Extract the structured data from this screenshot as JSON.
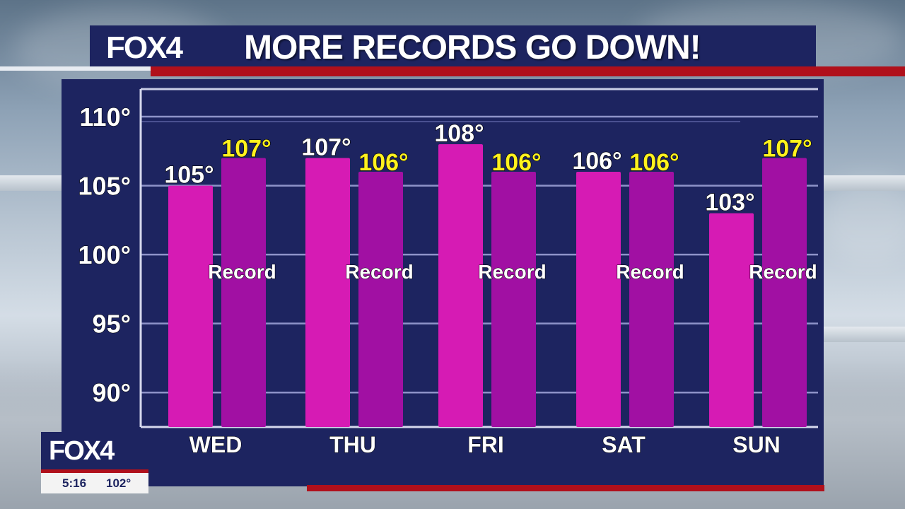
{
  "header": {
    "logo": "FOX4",
    "title": "MORE RECORDS GO DOWN!"
  },
  "bug": {
    "logo": "FOX4",
    "time": "5:16",
    "temp": "102°"
  },
  "colors": {
    "navy": "#1d2460",
    "red": "#b0101b",
    "forecast_bar": "#d61bb4",
    "record_bar": "#a110a3",
    "record_value": "#fff21e"
  },
  "chart_data": {
    "type": "bar",
    "categories": [
      "WED",
      "THU",
      "FRI",
      "SAT",
      "SUN"
    ],
    "series": [
      {
        "values": [
          105,
          107,
          108,
          106,
          103
        ],
        "labels": [
          "105°",
          "107°",
          "108°",
          "106°",
          "103°"
        ]
      },
      {
        "name": "Record",
        "values": [
          107,
          106,
          106,
          106,
          107
        ],
        "labels": [
          "107°",
          "106°",
          "106°",
          "106°",
          "107°"
        ]
      }
    ],
    "y_ticks": [
      {
        "value": 90,
        "label": "90°"
      },
      {
        "value": 95,
        "label": "95°"
      },
      {
        "value": 100,
        "label": "100°"
      },
      {
        "value": 105,
        "label": "105°"
      },
      {
        "value": 110,
        "label": "110°"
      }
    ],
    "ylim": [
      87.5,
      112
    ],
    "grid": true
  }
}
